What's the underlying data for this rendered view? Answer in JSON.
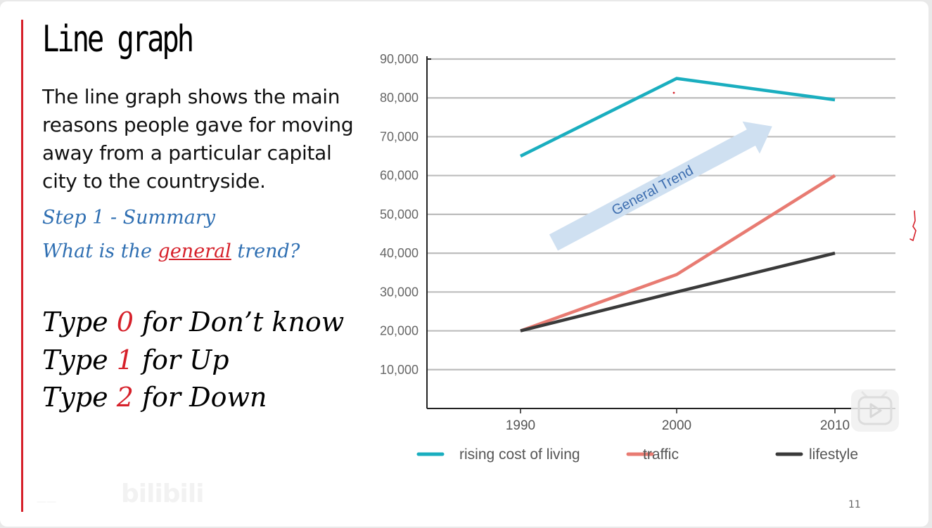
{
  "slide": {
    "title": "Line graph",
    "description": "The line graph shows the main reasons people gave for moving away from a particular capital city to the countryside.",
    "step1": "Step 1 - Summary",
    "question_pre": "What is the ",
    "question_underlined": "general",
    "question_post": " trend?",
    "options": [
      {
        "pre": "Type ",
        "num": "0",
        "post": " for Don’t know"
      },
      {
        "pre": "Type ",
        "num": "1",
        "post": " for Up"
      },
      {
        "pre": "Type ",
        "num": "2",
        "post": " for Down"
      }
    ],
    "page_number": "11",
    "watermark": "bilibili"
  },
  "colors": {
    "rising": "#1aaebf",
    "traffic": "#e87b72",
    "lifestyle": "#3a3a3a",
    "arrow": "#cfe0f1",
    "arrow_text": "#3f6fb0",
    "accent_red": "#d6202a"
  },
  "chart_data": {
    "type": "line",
    "x": [
      "1990",
      "2000",
      "2010"
    ],
    "series": [
      {
        "name": "rising cost of living",
        "values": [
          65000,
          85000,
          79500
        ]
      },
      {
        "name": "traffic",
        "values": [
          20000,
          34500,
          60000
        ]
      },
      {
        "name": "lifestyle",
        "values": [
          20000,
          30000,
          40000
        ]
      }
    ],
    "yticks": [
      "10,000",
      "20,000",
      "30,000",
      "40,000",
      "50,000",
      "60,000",
      "70,000",
      "80,000",
      "90,000"
    ],
    "ylim": [
      0,
      90000
    ],
    "grid": true,
    "legend_position": "bottom",
    "annotation": "General Trend"
  }
}
